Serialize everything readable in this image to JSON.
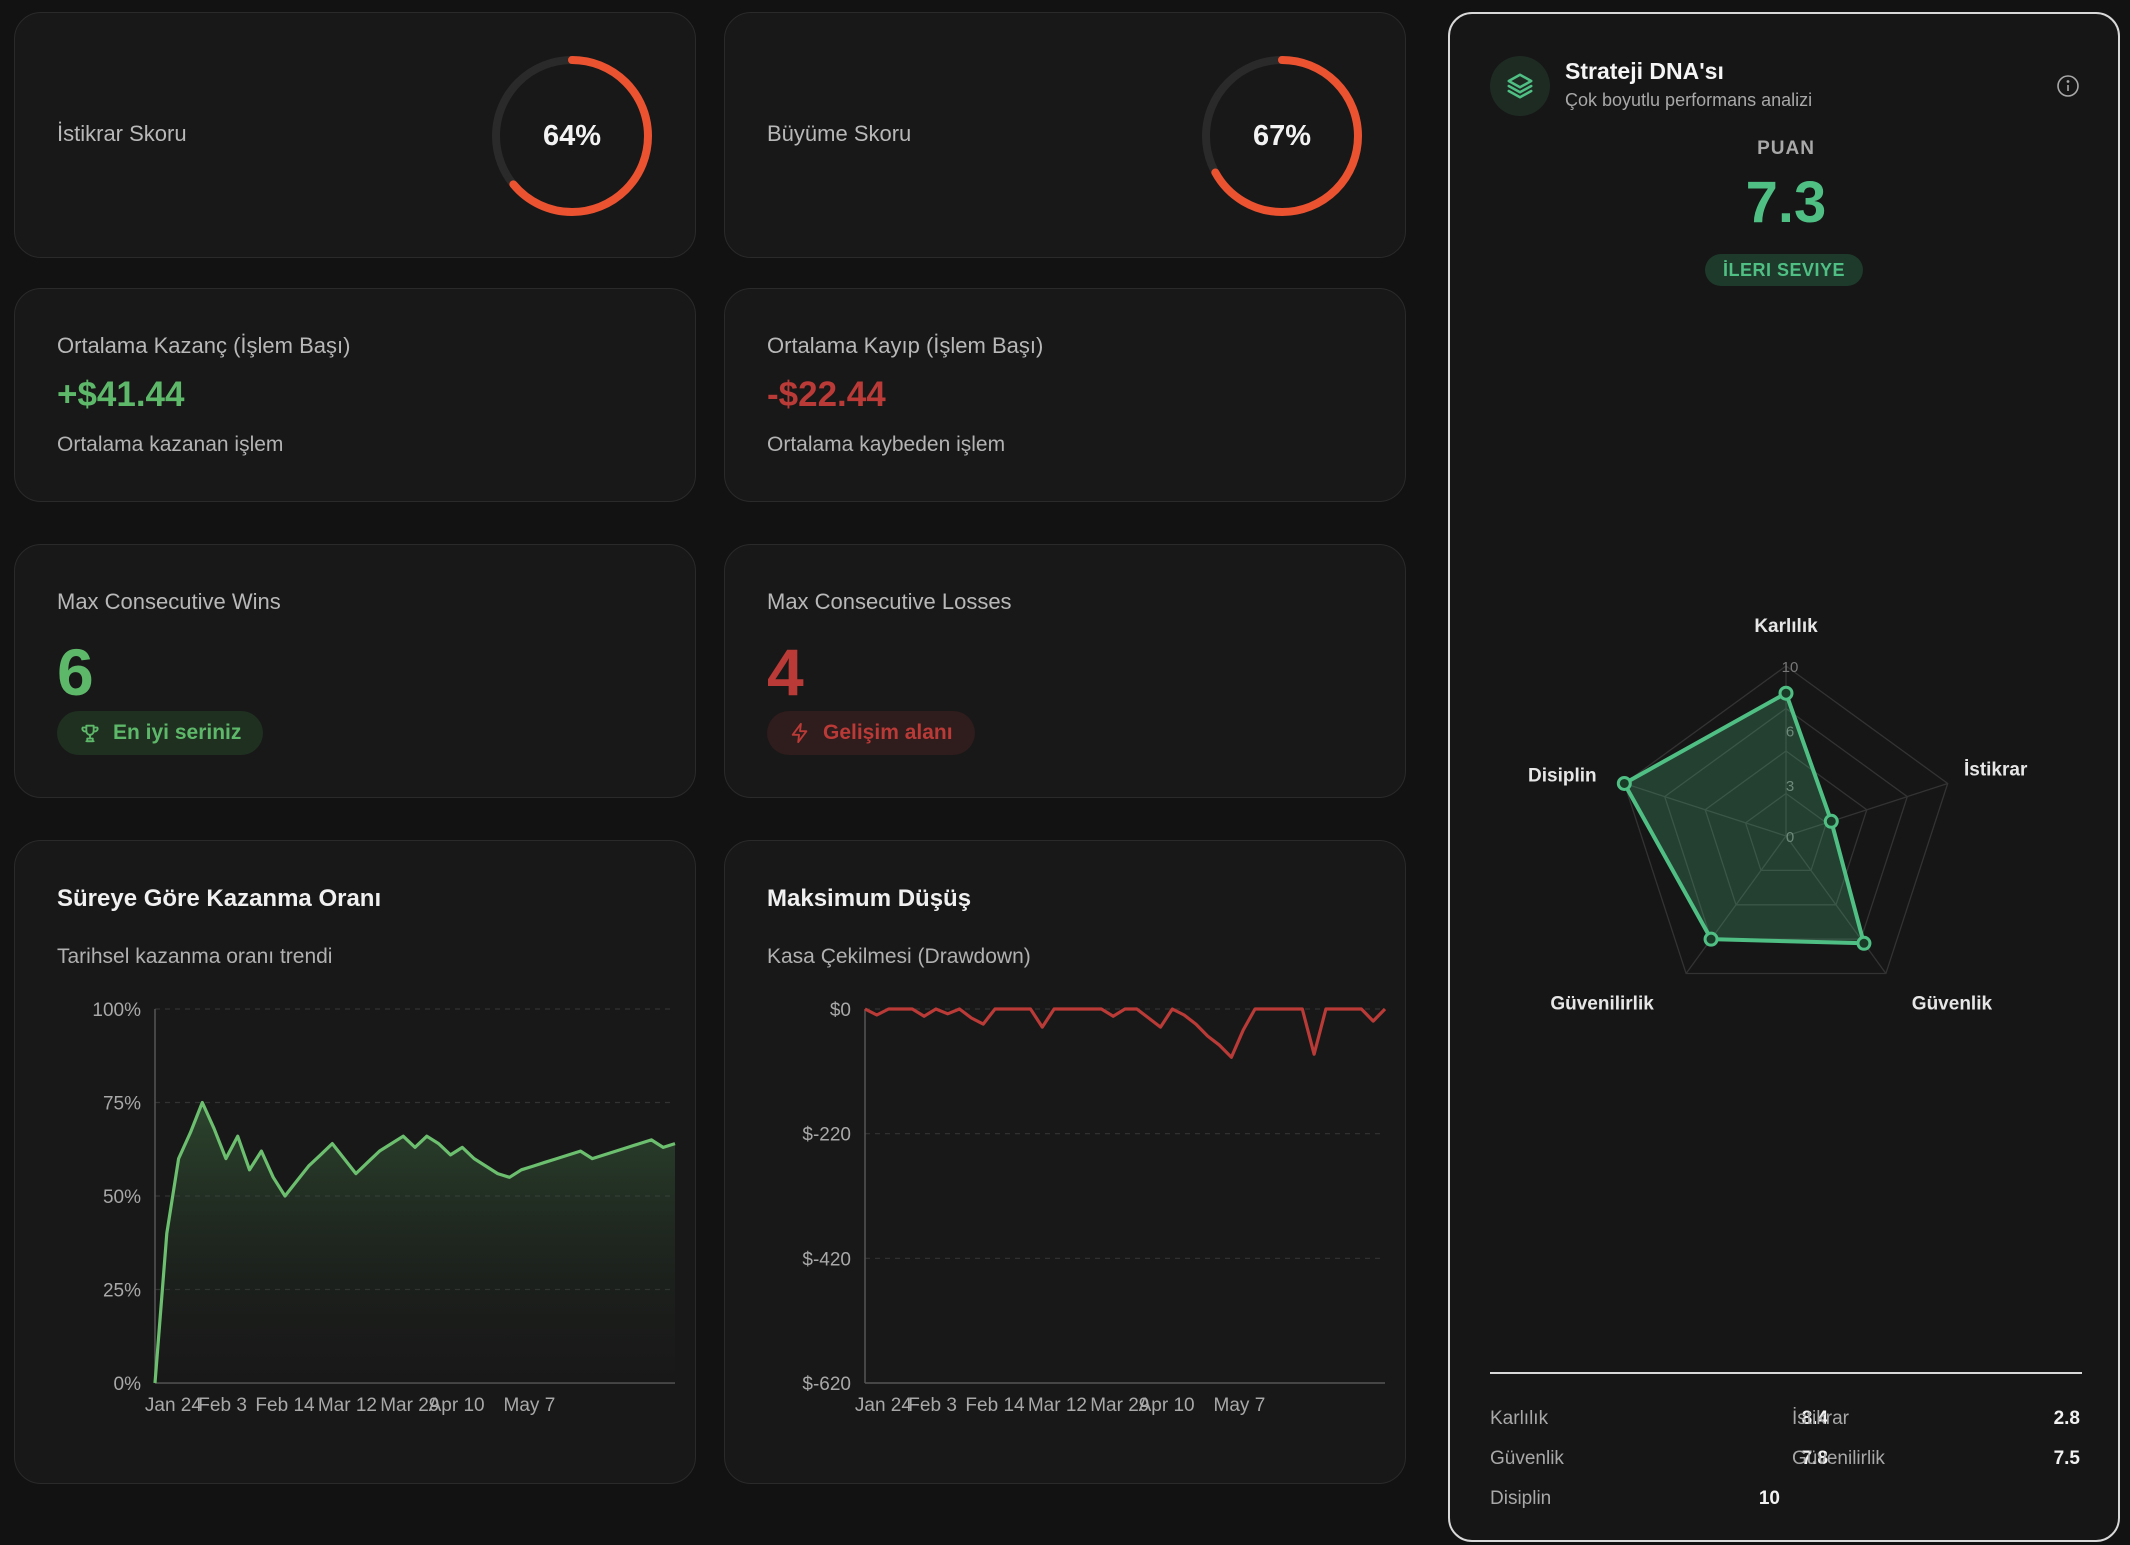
{
  "cards": {
    "stability": {
      "label": "İstikrar Skoru",
      "percent_text": "64%",
      "value": 0.64
    },
    "growth": {
      "label": "Büyüme Skoru",
      "percent_text": "67%",
      "value": 0.67
    },
    "avg_win": {
      "label": "Ortalama Kazanç (İşlem Başı)",
      "value": "+$41.44",
      "sub": "Ortalama kazanan işlem"
    },
    "avg_loss": {
      "label": "Ortalama Kayıp (İşlem Başı)",
      "value": "-$22.44",
      "sub": "Ortalama kaybeden işlem"
    },
    "max_wins": {
      "label": "Max Consecutive Wins",
      "value": "6",
      "badge": "En iyi seriniz",
      "badge_icon": "trophy-icon"
    },
    "max_losses": {
      "label": "Max Consecutive Losses",
      "value": "4",
      "badge": "Gelişim alanı",
      "badge_icon": "lightning-icon"
    }
  },
  "winrate_chart": {
    "title": "Süreye Göre Kazanma Oranı",
    "subtitle": "Tarihsel kazanma oranı trendi"
  },
  "drawdown_chart": {
    "title": "Maksimum Düşüş",
    "subtitle": "Kasa Çekilmesi (Drawdown)"
  },
  "chart_data": [
    {
      "type": "area",
      "title": "Süreye Göre Kazanma Oranı",
      "y_ticks": [
        "100%",
        "75%",
        "50%",
        "25%",
        "0%"
      ],
      "ylim": [
        0,
        100
      ],
      "x_ticks": [
        "Jan 24",
        "Feb 3",
        "Feb 14",
        "Mar 12",
        "Mar 29",
        "Apr 10",
        "May 7"
      ],
      "color": "#6cbf6e",
      "values": [
        0,
        40,
        60,
        67,
        75,
        68,
        60,
        66,
        57,
        62,
        55,
        50,
        54,
        58,
        61,
        64,
        60,
        56,
        59,
        62,
        64,
        66,
        63,
        66,
        64,
        61,
        63,
        60,
        58,
        56,
        55,
        57,
        58,
        59,
        60,
        61,
        62,
        60,
        61,
        62,
        63,
        64,
        65,
        63,
        64
      ]
    },
    {
      "type": "line",
      "title": "Maksimum Düşüş",
      "y_ticks": [
        "$0",
        "$-220",
        "$-420",
        "$-620"
      ],
      "ylim": [
        -620,
        0
      ],
      "x_ticks": [
        "Jan 24",
        "Feb 3",
        "Feb 14",
        "Mar 12",
        "Mar 29",
        "Apr 10",
        "May 7"
      ],
      "color": "#b93a36",
      "values": [
        0,
        -10,
        0,
        0,
        0,
        -12,
        0,
        -8,
        0,
        -15,
        -25,
        0,
        0,
        0,
        0,
        -30,
        0,
        0,
        0,
        0,
        0,
        -12,
        0,
        0,
        -15,
        -30,
        0,
        -10,
        -25,
        -45,
        -60,
        -80,
        -35,
        0,
        0,
        0,
        0,
        0,
        -75,
        0,
        0,
        0,
        0,
        -20,
        0
      ]
    },
    {
      "type": "radar",
      "title": "Strateji DNA'sı",
      "axes": [
        "Karlılık",
        "İstikrar",
        "Güvenlik",
        "Güvenilirlik",
        "Disiplin"
      ],
      "values": [
        8.4,
        2.8,
        7.8,
        7.5,
        10
      ],
      "rlim": [
        0,
        10
      ],
      "ring_labels": [
        "10",
        "6",
        "3",
        "0"
      ],
      "color": "#4fbf84"
    }
  ],
  "dna": {
    "title": "Strateji DNA'sı",
    "subtitle": "Çok boyutlu performans analizi",
    "score_label": "PUAN",
    "score": "7.3",
    "level": "İLERI SEVIYE",
    "axis_labels": {
      "karlilik": "Karlılık",
      "istikrar": "İstikrar",
      "guvenlik": "Güvenlik",
      "guvenilirlik": "Güvenilirlik",
      "disiplin": "Disiplin"
    },
    "ring_labels": [
      "10",
      "6",
      "3",
      "0"
    ],
    "stats": [
      {
        "name": "Karlılık",
        "value": "8.4"
      },
      {
        "name": "İstikrar",
        "value": "2.8"
      },
      {
        "name": "Güvenlik",
        "value": "7.8"
      },
      {
        "name": "Güvenilirlik",
        "value": "7.5"
      },
      {
        "name": "Disiplin",
        "value": "10"
      }
    ]
  },
  "colors": {
    "donut": "#ea5230",
    "green": "#5eb86a",
    "red": "#b93a36",
    "radar": "#4fbf84"
  }
}
